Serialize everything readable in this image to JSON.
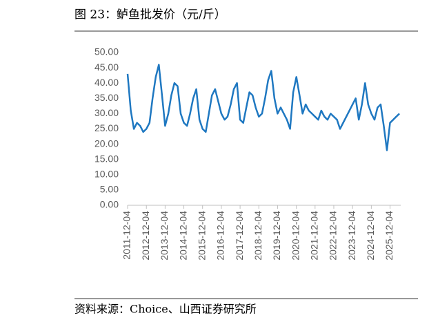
{
  "chart_data": {
    "type": "line",
    "title": "图 23：鲈鱼批发价（元/斤）",
    "source": "资料来源：Choice、山西证券研究所",
    "x": [
      "2011-12-04",
      "2012-02-04",
      "2012-04-04",
      "2012-06-04",
      "2012-08-04",
      "2012-10-04",
      "2012-12-04",
      "2013-02-04",
      "2013-04-04",
      "2013-06-04",
      "2013-08-04",
      "2013-10-04",
      "2013-12-04",
      "2014-02-04",
      "2014-04-04",
      "2014-06-04",
      "2014-08-04",
      "2014-10-04",
      "2014-12-04",
      "2015-02-04",
      "2015-04-04",
      "2015-06-04",
      "2015-08-04",
      "2015-10-04",
      "2015-12-04",
      "2016-02-04",
      "2016-04-04",
      "2016-06-04",
      "2016-08-04",
      "2016-10-04",
      "2016-12-04",
      "2017-02-04",
      "2017-04-04",
      "2017-06-04",
      "2017-08-04",
      "2017-10-04",
      "2017-12-04",
      "2018-02-04",
      "2018-04-04",
      "2018-06-04",
      "2018-08-04",
      "2018-10-04",
      "2018-12-04",
      "2019-02-04",
      "2019-04-04",
      "2019-06-04",
      "2019-08-04",
      "2019-10-04",
      "2019-12-04",
      "2020-02-04",
      "2020-04-04",
      "2020-06-04",
      "2020-08-04",
      "2020-10-04",
      "2020-12-04",
      "2021-02-04",
      "2021-04-04",
      "2021-06-04",
      "2021-08-04",
      "2021-10-04",
      "2021-12-04",
      "2022-02-04",
      "2022-04-04",
      "2022-06-04",
      "2022-08-04",
      "2022-10-04",
      "2022-12-04",
      "2023-02-04",
      "2023-04-04",
      "2024-02-04",
      "2024-04-04",
      "2024-06-04",
      "2024-08-04",
      "2024-10-04",
      "2024-12-04",
      "2025-02-04",
      "2025-04-04",
      "2025-06-04",
      "2025-08-04",
      "2025-10-04",
      "2025-12-04",
      "2026-02-04",
      "2026-04-04",
      "2026-06-04"
    ],
    "series": [
      {
        "name": "鲈鱼批发价",
        "color": "#1f78c1",
        "values": [
          43,
          31,
          25,
          27,
          26,
          24,
          25,
          27,
          35,
          42,
          46,
          36,
          26,
          30,
          36,
          40,
          39,
          30,
          27,
          26,
          30,
          35,
          38,
          28,
          25,
          24,
          30,
          36,
          38,
          34,
          30,
          28,
          29,
          33,
          38,
          40,
          28,
          27,
          32,
          37,
          36,
          32,
          29,
          30,
          35,
          41,
          44,
          35,
          30,
          32,
          30,
          28,
          25,
          37,
          42,
          36,
          30,
          33,
          31,
          30,
          29,
          28,
          31,
          29,
          28,
          30,
          29,
          28,
          25,
          35,
          28,
          33,
          40,
          33,
          30,
          28,
          32,
          33,
          26,
          18,
          27,
          28,
          29,
          30
        ]
      }
    ],
    "xlim": [
      "2011-12-04",
      "2026-06-30"
    ],
    "xticks": [
      "2011-12-04",
      "2012-12-04",
      "2013-12-04",
      "2014-12-04",
      "2015-12-04",
      "2016-12-04",
      "2017-12-04",
      "2018-12-04",
      "2019-12-04",
      "2020-12-04",
      "2021-12-04",
      "2022-12-04",
      "2023-12-04",
      "2024-12-04",
      "2025-12-04"
    ],
    "ylim": [
      0,
      50
    ],
    "yticks": [
      {
        "value": 0,
        "label": "0.00"
      },
      {
        "value": 5,
        "label": "5.00"
      },
      {
        "value": 10,
        "label": "10.00"
      },
      {
        "value": 15,
        "label": "15.00"
      },
      {
        "value": 20,
        "label": "20.00"
      },
      {
        "value": 25,
        "label": "25.00"
      },
      {
        "value": 30,
        "label": "30.00"
      },
      {
        "value": 35,
        "label": "35.00"
      },
      {
        "value": 40,
        "label": "40.00"
      },
      {
        "value": 45,
        "label": "45.00"
      },
      {
        "value": 50,
        "label": "50.00"
      }
    ]
  }
}
